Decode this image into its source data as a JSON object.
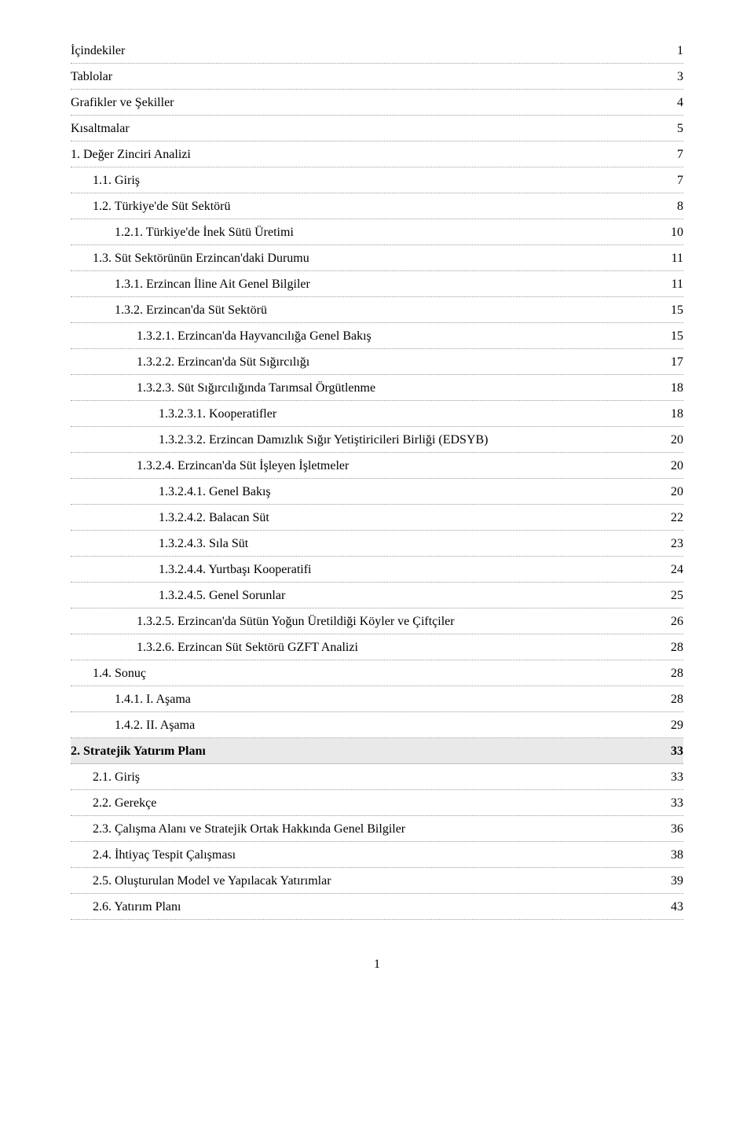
{
  "toc": [
    {
      "title": "İçindekiler",
      "page": "1",
      "indent": 0,
      "bold": false
    },
    {
      "title": "Tablolar",
      "page": "3",
      "indent": 0,
      "bold": false
    },
    {
      "title": "Grafikler  ve Şekiller",
      "page": "4",
      "indent": 0,
      "bold": false
    },
    {
      "title": "Kısaltmalar",
      "page": "5",
      "indent": 0,
      "bold": false
    },
    {
      "title": "1. Değer Zinciri Analizi",
      "page": "7",
      "indent": 0,
      "bold": false
    },
    {
      "title": "1.1. Giriş",
      "page": "7",
      "indent": 1,
      "bold": false
    },
    {
      "title": "1.2. Türkiye'de Süt Sektörü",
      "page": "8",
      "indent": 1,
      "bold": false
    },
    {
      "title": "1.2.1. Türkiye'de İnek Sütü Üretimi",
      "page": "10",
      "indent": 2,
      "bold": false
    },
    {
      "title": "1.3. Süt Sektörünün Erzincan'daki Durumu",
      "page": "11",
      "indent": 1,
      "bold": false
    },
    {
      "title": "1.3.1. Erzincan İline Ait Genel Bilgiler",
      "page": "11",
      "indent": 2,
      "bold": false
    },
    {
      "title": "1.3.2. Erzincan'da Süt Sektörü",
      "page": "15",
      "indent": 2,
      "bold": false
    },
    {
      "title": "1.3.2.1. Erzincan'da Hayvancılığa Genel Bakış",
      "page": "15",
      "indent": 3,
      "bold": false
    },
    {
      "title": "1.3.2.2. Erzincan'da Süt Sığırcılığı",
      "page": "17",
      "indent": 3,
      "bold": false
    },
    {
      "title": "1.3.2.3. Süt Sığırcılığında Tarımsal Örgütlenme",
      "page": "18",
      "indent": 3,
      "bold": false
    },
    {
      "title": "1.3.2.3.1. Kooperatifler",
      "page": "18",
      "indent": 4,
      "bold": false
    },
    {
      "title": "1.3.2.3.2. Erzincan Damızlık Sığır Yetiştiricileri Birliği (EDSYB)",
      "page": "20",
      "indent": 4,
      "bold": false
    },
    {
      "title": "1.3.2.4. Erzincan'da Süt İşleyen İşletmeler",
      "page": "20",
      "indent": 3,
      "bold": false
    },
    {
      "title": "1.3.2.4.1. Genel Bakış",
      "page": "20",
      "indent": 4,
      "bold": false
    },
    {
      "title": "1.3.2.4.2. Balacan Süt",
      "page": "22",
      "indent": 4,
      "bold": false
    },
    {
      "title": "1.3.2.4.3. Sıla Süt",
      "page": "23",
      "indent": 4,
      "bold": false
    },
    {
      "title": "1.3.2.4.4. Yurtbaşı Kooperatifi",
      "page": "24",
      "indent": 4,
      "bold": false
    },
    {
      "title": "1.3.2.4.5. Genel Sorunlar",
      "page": "25",
      "indent": 4,
      "bold": false
    },
    {
      "title": "1.3.2.5. Erzincan'da Sütün Yoğun Üretildiği Köyler ve Çiftçiler",
      "page": "26",
      "indent": 3,
      "bold": false
    },
    {
      "title": "1.3.2.6. Erzincan Süt Sektörü GZFT Analizi",
      "page": "28",
      "indent": 3,
      "bold": false
    },
    {
      "title": "1.4. Sonuç",
      "page": "28",
      "indent": 1,
      "bold": false
    },
    {
      "title": "1.4.1. I. Aşama",
      "page": "28",
      "indent": 2,
      "bold": false
    },
    {
      "title": "1.4.2. II. Aşama",
      "page": "29",
      "indent": 2,
      "bold": false
    },
    {
      "title": "2. Stratejik Yatırım Planı",
      "page": "33",
      "indent": 0,
      "bold": true
    },
    {
      "title": "2.1. Giriş",
      "page": "33",
      "indent": 1,
      "bold": false
    },
    {
      "title": "2.2. Gerekçe",
      "page": "33",
      "indent": 1,
      "bold": false
    },
    {
      "title": "2.3. Çalışma Alanı ve Stratejik Ortak Hakkında Genel Bilgiler",
      "page": "36",
      "indent": 1,
      "bold": false
    },
    {
      "title": "2.4.  İhtiyaç Tespit Çalışması",
      "page": "38",
      "indent": 1,
      "bold": false
    },
    {
      "title": "2.5. Oluşturulan Model ve Yapılacak Yatırımlar",
      "page": "39",
      "indent": 1,
      "bold": false
    },
    {
      "title": "2.6. Yatırım Planı",
      "page": "43",
      "indent": 1,
      "bold": false
    }
  ],
  "footer": {
    "page_number": "1"
  }
}
